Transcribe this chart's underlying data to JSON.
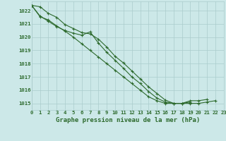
{
  "title": "Graphe pression niveau de la mer (hPa)",
  "bg_color": "#cce8e8",
  "grid_color": "#aacccc",
  "line_color": "#2d6a2d",
  "xlim": [
    0,
    23
  ],
  "ylim": [
    1014.5,
    1022.7
  ],
  "yticks": [
    1015,
    1016,
    1017,
    1018,
    1019,
    1020,
    1021,
    1022
  ],
  "xticks": [
    0,
    1,
    2,
    3,
    4,
    5,
    6,
    7,
    8,
    9,
    10,
    11,
    12,
    13,
    14,
    15,
    16,
    17,
    18,
    19,
    20,
    21,
    22,
    23
  ],
  "series": [
    [
      1022.4,
      1021.6,
      1021.2,
      1020.8,
      1020.5,
      1020.3,
      1020.15,
      1020.4,
      1019.55,
      1018.85,
      1018.25,
      1017.65,
      1017.0,
      1016.5,
      1015.9,
      1015.4,
      1015.1,
      1015.0,
      1015.0,
      1015.1
    ],
    [
      1022.4,
      1022.3,
      1021.8,
      1021.5,
      1020.95,
      1020.65,
      1020.35,
      1020.25,
      1019.85,
      1019.25,
      1018.55,
      1018.05,
      1017.45,
      1016.85,
      1016.25,
      1015.75,
      1015.25,
      1015.0,
      1015.0,
      1015.2,
      1015.2,
      1015.3
    ],
    [
      1022.4,
      1021.55,
      1021.3,
      1020.85,
      1020.45,
      1020.0,
      1019.5,
      1019.0,
      1018.5,
      1018.0,
      1017.5,
      1017.0,
      1016.5,
      1016.0,
      1015.5,
      1015.2,
      1015.0,
      1015.0,
      1015.0,
      1015.0,
      1015.0,
      1015.1,
      1015.2
    ]
  ],
  "series_x": [
    [
      0,
      1,
      2,
      3,
      4,
      5,
      6,
      7,
      8,
      9,
      10,
      11,
      12,
      13,
      14,
      15,
      16,
      17,
      18,
      19
    ],
    [
      0,
      1,
      2,
      3,
      4,
      5,
      6,
      7,
      8,
      9,
      10,
      11,
      12,
      13,
      14,
      15,
      16,
      17,
      18,
      19,
      20,
      21
    ],
    [
      0,
      1,
      2,
      3,
      4,
      5,
      6,
      7,
      8,
      9,
      10,
      11,
      12,
      13,
      14,
      15,
      16,
      17,
      18,
      19,
      20,
      21,
      22
    ]
  ],
  "ylabel_fontsize": 6.0,
  "xlabel_fontsize": 6.5,
  "tick_fontsize": 5.2
}
